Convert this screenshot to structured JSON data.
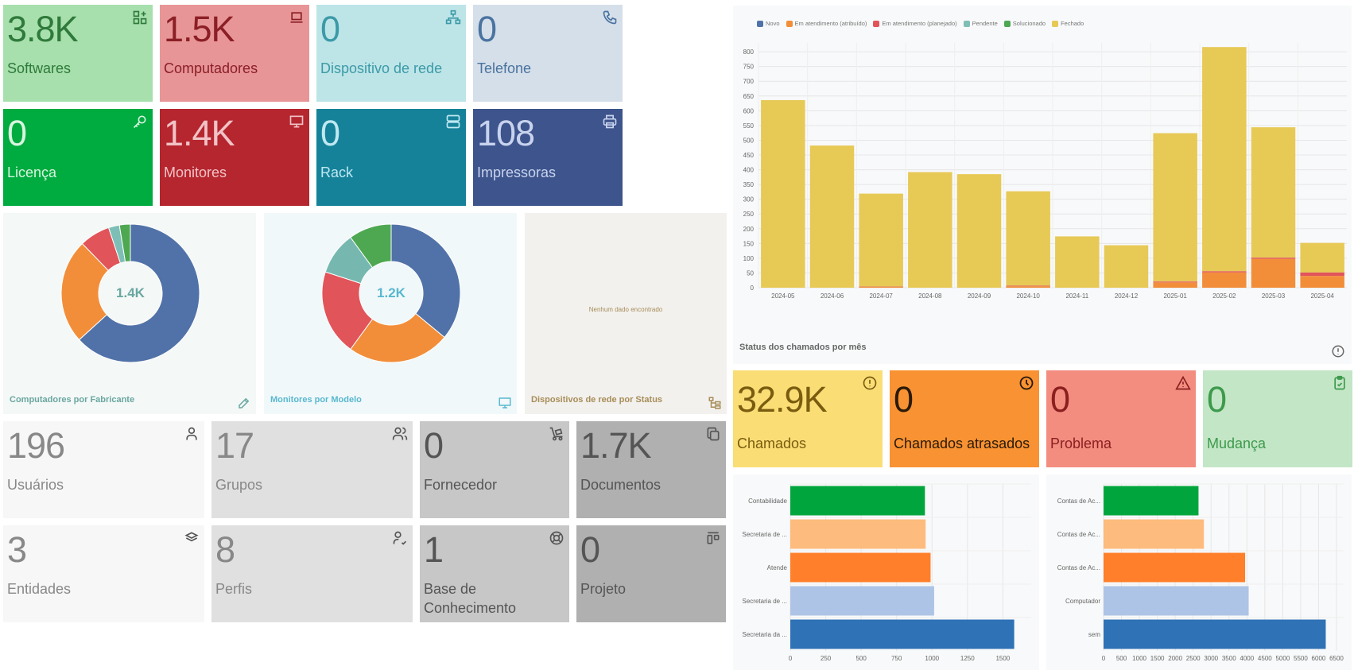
{
  "top_cards": [
    {
      "key": "softwares",
      "value": "3.8K",
      "label": "Softwares",
      "bg": "#a7e0ad",
      "fg": "#2f7a3a",
      "icon": "apps-icon"
    },
    {
      "key": "computadores",
      "value": "1.5K",
      "label": "Computadores",
      "bg": "#e89597",
      "fg": "#8b1f26",
      "icon": "laptop-icon"
    },
    {
      "key": "dispositivo-rede",
      "value": "0",
      "label": "Dispositivo de rede",
      "bg": "#bde5e8",
      "fg": "#3c9aa7",
      "icon": "network-icon"
    },
    {
      "key": "telefone",
      "value": "0",
      "label": "Telefone",
      "bg": "#d5dfe9",
      "fg": "#4a73a0",
      "icon": "phone-icon"
    },
    {
      "key": "licenca",
      "value": "0",
      "label": "Licença",
      "bg": "#00ab3f",
      "fg": "#d8f5e0",
      "icon": "key-icon"
    },
    {
      "key": "monitores",
      "value": "1.4K",
      "label": "Monitores",
      "bg": "#b5262f",
      "fg": "#f2c3c6",
      "icon": "monitor-icon"
    },
    {
      "key": "rack",
      "value": "0",
      "label": "Rack",
      "bg": "#16829a",
      "fg": "#bfe8f1",
      "icon": "server-icon"
    },
    {
      "key": "impressoras",
      "value": "108",
      "label": "Impressoras",
      "bg": "#3d548c",
      "fg": "#c9d3ee",
      "icon": "printer-icon"
    }
  ],
  "donuts": [
    {
      "key": "computadores-fabricante",
      "title": "Computadores por Fabricante",
      "center": "1.4K",
      "bg": "#f4f8f7",
      "title_color": "#6aa7a0",
      "icon": "edit-icon",
      "slices": [
        {
          "value": 62,
          "color": "#5172a8"
        },
        {
          "value": 24,
          "color": "#f28e3a"
        },
        {
          "value": 7,
          "color": "#e1545a"
        },
        {
          "value": 2.5,
          "color": "#7dbfb6"
        },
        {
          "value": 2.5,
          "color": "#4ea852"
        }
      ]
    },
    {
      "key": "monitores-modelo",
      "title": "Monitores por Modelo",
      "center": "1.2K",
      "bg": "#f1f8fa",
      "title_color": "#58b8cf",
      "icon": "monitor-icon",
      "slices": [
        {
          "value": 36,
          "color": "#5172a8"
        },
        {
          "value": 24,
          "color": "#f28e3a"
        },
        {
          "value": 20,
          "color": "#e1545a"
        },
        {
          "value": 10,
          "color": "#76b8b0"
        },
        {
          "value": 10,
          "color": "#4ea852"
        }
      ]
    }
  ],
  "empty_panel": {
    "title": "Dispositivos de rede por Status",
    "message": "Nenhum dado encontrado",
    "bg": "#f2f1ee",
    "title_color": "#a88d58",
    "icon": "hierarchy-icon"
  },
  "bottom_cards": [
    {
      "key": "usuarios",
      "value": "196",
      "label": "Usuários",
      "bg": "#f7f7f7",
      "icon": "user-icon"
    },
    {
      "key": "grupos",
      "value": "17",
      "label": "Grupos",
      "bg": "#e0e0e0",
      "icon": "users-icon"
    },
    {
      "key": "fornecedor",
      "value": "0",
      "label": "Fornecedor",
      "bg": "#c7c7c7",
      "icon": "dolly-icon"
    },
    {
      "key": "documentos",
      "value": "1.7K",
      "label": "Documentos",
      "bg": "#b0b0b0",
      "icon": "files-icon"
    },
    {
      "key": "entidades",
      "value": "3",
      "label": "Entidades",
      "bg": "#f7f7f7",
      "icon": "stack-icon"
    },
    {
      "key": "perfis",
      "value": "8",
      "label": "Perfis",
      "bg": "#e0e0e0",
      "icon": "user-check-icon"
    },
    {
      "key": "base-conhecimento",
      "value": "1",
      "label": "Base de Conhecimento",
      "bg": "#c7c7c7",
      "icon": "lifebuoy-icon"
    },
    {
      "key": "projeto",
      "value": "0",
      "label": "Projeto",
      "bg": "#b0b0b0",
      "icon": "kanban-icon"
    }
  ],
  "ticket_cards": [
    {
      "key": "chamados",
      "value": "32.9K",
      "label": "Chamados",
      "bg": "#fade75",
      "fg": "#7a5c10",
      "icon": "alert-circle-icon"
    },
    {
      "key": "chamados-atrasados",
      "value": "0",
      "label": "Chamados atrasados",
      "bg": "#f99232",
      "fg": "#2a1a08",
      "icon": "clock-icon"
    },
    {
      "key": "problema",
      "value": "0",
      "label": "Problema",
      "bg": "#f28d80",
      "fg": "#8b1f1f",
      "icon": "warning-icon"
    },
    {
      "key": "mudanca",
      "value": "0",
      "label": "Mudança",
      "bg": "#c3e6c6",
      "fg": "#3d9a4c",
      "icon": "clipboard-check-icon"
    }
  ],
  "stacked_chart": {
    "title": "Status dos chamados por mês",
    "icon": "info-icon",
    "chart_data": {
      "type": "bar",
      "stacked": true,
      "categories": [
        "2024-05",
        "2024-06",
        "2024-07",
        "2024-08",
        "2024-09",
        "2024-10",
        "2024-11",
        "2024-12",
        "2025-01",
        "2025-02",
        "2025-03",
        "2025-04"
      ],
      "yticks": [
        0,
        50,
        100,
        150,
        200,
        250,
        300,
        350,
        400,
        450,
        500,
        550,
        600,
        650,
        700,
        750,
        800
      ],
      "ylim": [
        0,
        830
      ],
      "series": [
        {
          "name": "Novo",
          "color": "#5172a8",
          "values": [
            0,
            0,
            0,
            0,
            0,
            0,
            0,
            0,
            0,
            0,
            0,
            0
          ]
        },
        {
          "name": "Em atendimento (atribuído)",
          "color": "#f28e3a",
          "values": [
            0,
            0,
            3,
            0,
            0,
            5,
            0,
            0,
            18,
            52,
            98,
            40
          ]
        },
        {
          "name": "Em atendimento (planejado)",
          "color": "#e1545a",
          "values": [
            0,
            0,
            1,
            0,
            0,
            2,
            0,
            0,
            3,
            4,
            4,
            12
          ]
        },
        {
          "name": "Pendente",
          "color": "#7dbfb6",
          "values": [
            0,
            0,
            0,
            0,
            0,
            0,
            0,
            0,
            0,
            0,
            0,
            0
          ]
        },
        {
          "name": "Solucionado",
          "color": "#4ea852",
          "values": [
            0,
            0,
            0,
            0,
            0,
            0,
            0,
            0,
            0,
            0,
            0,
            0
          ]
        },
        {
          "name": "Fechado",
          "color": "#e7c956",
          "values": [
            636,
            482,
            315,
            392,
            385,
            320,
            174,
            144,
            503,
            760,
            442,
            100
          ]
        }
      ]
    }
  },
  "hbar_charts": [
    {
      "key": "chamados-por-categoria",
      "chart_data": {
        "type": "bar",
        "orientation": "horizontal",
        "categories": [
          "Contabilidade",
          "Secretaria de ...",
          "Atende",
          "Secretaria de ...",
          "Secretaria da ..."
        ],
        "values": [
          950,
          955,
          990,
          1015,
          1580
        ],
        "colors": [
          "#00a63d",
          "#fdbb7d",
          "#ff7f2a",
          "#aec4e6",
          "#2f72b6"
        ],
        "xticks": [
          0,
          250,
          500,
          750,
          1000,
          1250,
          1500
        ],
        "xlim": [
          0,
          1700
        ]
      }
    },
    {
      "key": "chamados-por-tipo",
      "chart_data": {
        "type": "bar",
        "orientation": "horizontal",
        "categories": [
          "Contas de Ac...",
          "Contas de Ac...",
          "Contas de Ac...",
          "Computador",
          "sem"
        ],
        "values": [
          2650,
          2800,
          3950,
          4050,
          6200
        ],
        "colors": [
          "#00a63d",
          "#fdbb7d",
          "#ff7f2a",
          "#aec4e6",
          "#2f72b6"
        ],
        "xticks": [
          0,
          500,
          1000,
          1500,
          2000,
          2500,
          3000,
          3500,
          4000,
          4500,
          5000,
          5500,
          6000,
          6500
        ],
        "xlim": [
          0,
          6700
        ]
      }
    }
  ]
}
